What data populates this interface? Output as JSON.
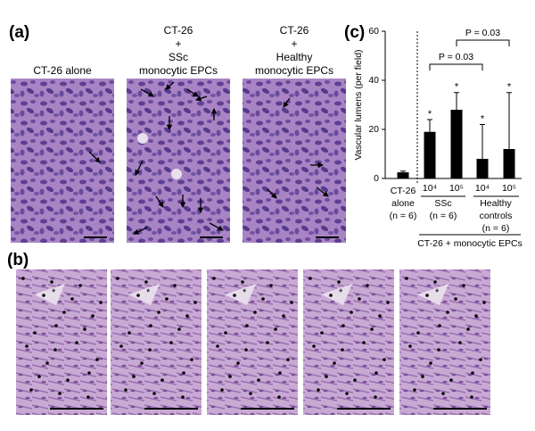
{
  "panel_a": {
    "label": "(a)",
    "titles": [
      [
        "CT-26 alone"
      ],
      [
        "CT-26",
        "+",
        "SSc",
        "monocytic EPCs"
      ],
      [
        "CT-26",
        "+",
        "Healthy",
        "monocytic EPCs"
      ]
    ]
  },
  "panel_b": {
    "label": "(b)",
    "marker": "*"
  },
  "panel_c": {
    "label": "(c)"
  },
  "chart_data": {
    "type": "bar",
    "y_label": "Vascular lumens (per field)",
    "categories": [
      null,
      "10⁴",
      "10⁵",
      "10⁴",
      "10⁵"
    ],
    "values": [
      2.5,
      19,
      28,
      8,
      12
    ],
    "errors": [
      0.5,
      5,
      7,
      14,
      23
    ],
    "significance": [
      null,
      "*",
      "*",
      "*",
      "*"
    ],
    "color": "#000000",
    "groups": [
      [
        "CT-26",
        "alone",
        "(n = 6)"
      ],
      [
        "SSc",
        "(n = 6)"
      ],
      [
        "Healthy",
        "controls",
        "(n = 6)"
      ]
    ],
    "supergroup": "CT-26 + monocytic EPCs",
    "comparisons": [
      {
        "label": "P = 0.03"
      },
      {
        "label": "P = 0.03"
      }
    ],
    "ylim": [
      0,
      60
    ],
    "yticks": [
      0,
      20,
      40,
      60
    ]
  }
}
